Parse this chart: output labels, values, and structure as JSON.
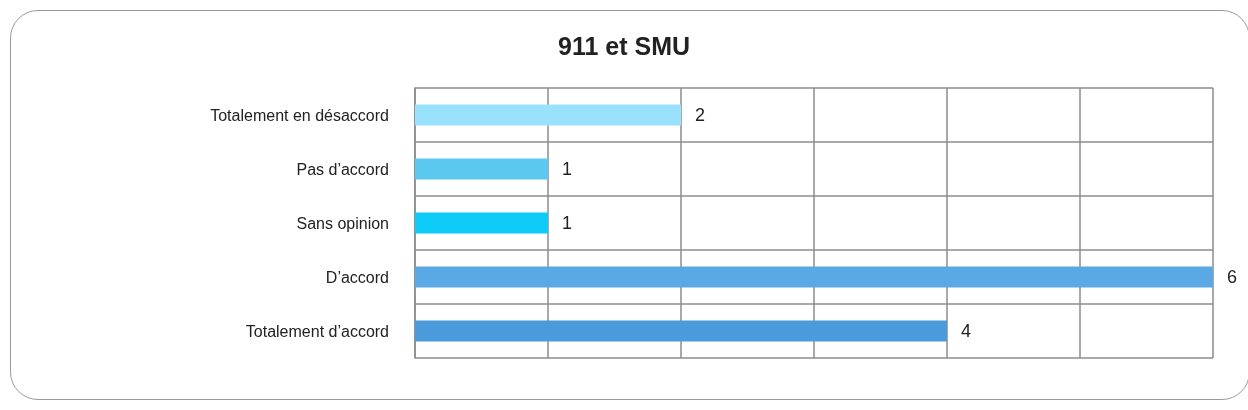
{
  "chart_data": {
    "type": "bar",
    "orientation": "horizontal",
    "title": "911 et SMU",
    "categories": [
      "Totalement en désaccord",
      "Pas d’accord",
      "Sans opinion",
      "D’accord",
      "Totalement d’accord"
    ],
    "values": [
      2,
      1,
      1,
      6,
      4
    ],
    "colors": [
      "#99e1fc",
      "#5bc8ef",
      "#0fcbf7",
      "#5aa9e5",
      "#4b9bdc"
    ],
    "xlim": [
      0,
      6
    ],
    "xticks": [
      0,
      1,
      2,
      3,
      4,
      5,
      6
    ],
    "tick_labels": "y",
    "grid": true,
    "data_labels": true
  }
}
